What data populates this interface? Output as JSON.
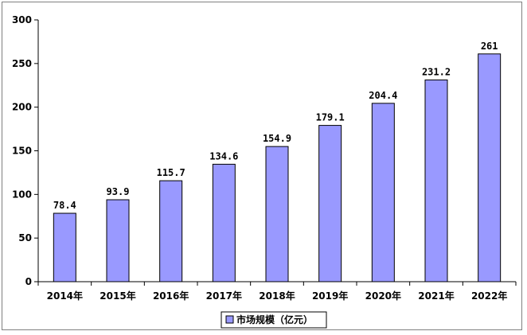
{
  "chart_data": {
    "type": "bar",
    "categories": [
      "2014年",
      "2015年",
      "2016年",
      "2017年",
      "2018年",
      "2019年",
      "2020年",
      "2021年",
      "2022年"
    ],
    "series": [
      {
        "name": "市场规模（亿元）",
        "values": [
          78.4,
          93.9,
          115.7,
          134.6,
          154.9,
          179.1,
          204.4,
          231.2,
          261
        ],
        "labels": [
          "78.4",
          "93.9",
          "115.7",
          "134.6",
          "154.9",
          "179.1",
          "204.4",
          "231.2",
          "261"
        ],
        "color": "#9999ff"
      }
    ],
    "title": "",
    "xlabel": "",
    "ylabel": "",
    "ylim": [
      0,
      300
    ],
    "yticks": [
      "0",
      "50",
      "100",
      "150",
      "200",
      "250",
      "300"
    ],
    "grid": false,
    "legend_position": "bottom"
  }
}
